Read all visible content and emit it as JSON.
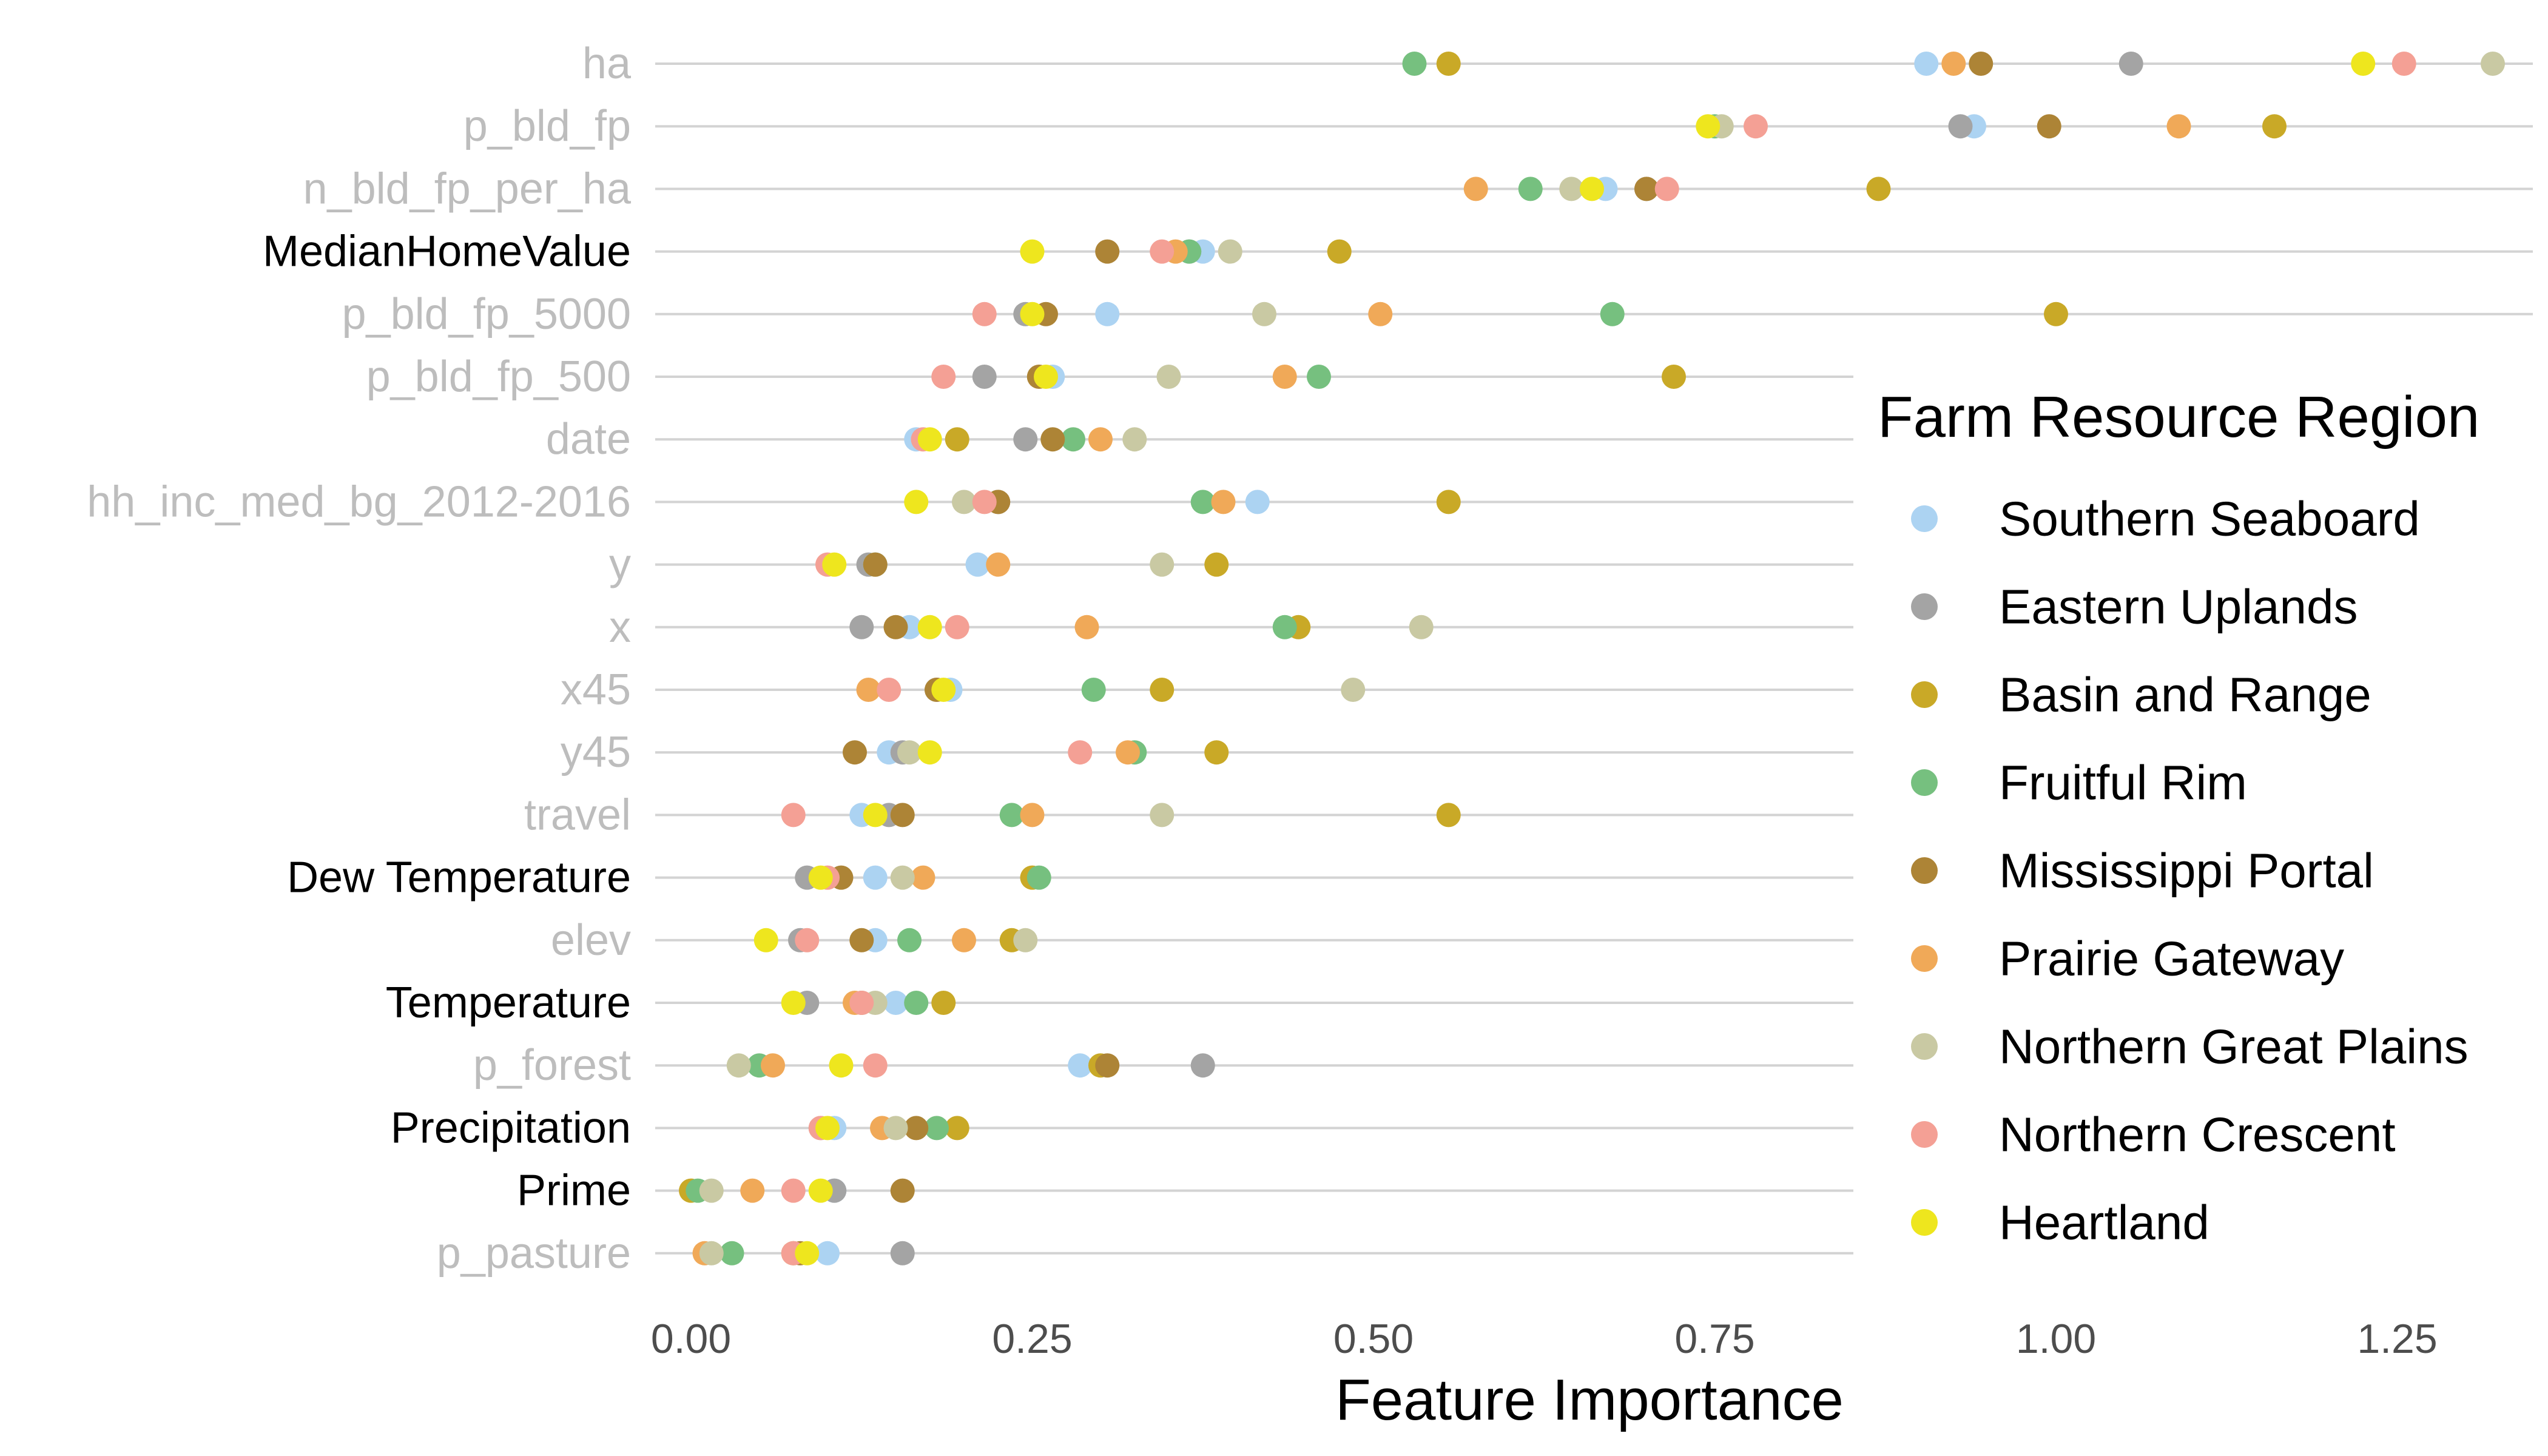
{
  "chart_data": {
    "type": "scatter",
    "xlabel": "Feature Importance",
    "xlim": [
      -0.04,
      1.35
    ],
    "xticks": [
      0,
      0.25,
      0.5,
      0.75,
      1.0,
      1.25
    ],
    "xtick_labels": [
      "0.00",
      "0.25",
      "0.50",
      "0.75",
      "1.00",
      "1.25"
    ],
    "categories": [
      "ha",
      "p_bld_fp",
      "n_bld_fp_per_ha",
      "MedianHomeValue",
      "p_bld_fp_5000",
      "p_bld_fp_500",
      "date",
      "hh_inc_med_bg_2012-2016",
      "y",
      "x",
      "x45",
      "y45",
      "travel",
      "Dew Temperature",
      "elev",
      "Temperature",
      "p_forest",
      "Precipitation",
      "Prime",
      "p_pasture"
    ],
    "category_colors": {
      "ha": "#bdbdbd",
      "p_bld_fp": "#bdbdbd",
      "n_bld_fp_per_ha": "#bdbdbd",
      "MedianHomeValue": "#000000",
      "p_bld_fp_5000": "#bdbdbd",
      "p_bld_fp_500": "#bdbdbd",
      "date": "#bdbdbd",
      "hh_inc_med_bg_2012-2016": "#bdbdbd",
      "y": "#bdbdbd",
      "x": "#bdbdbd",
      "x45": "#bdbdbd",
      "y45": "#bdbdbd",
      "travel": "#bdbdbd",
      "Dew Temperature": "#000000",
      "elev": "#bdbdbd",
      "Temperature": "#000000",
      "p_forest": "#bdbdbd",
      "Precipitation": "#000000",
      "Prime": "#000000",
      "p_pasture": "#bdbdbd"
    },
    "legend_title": "Farm Resource Region",
    "legend_position": "right",
    "grid": "horizontal",
    "series": [
      {
        "name": "Southern Seaboard",
        "color": "#acd3f2",
        "values": [
          0.905,
          0.94,
          0.67,
          0.375,
          0.305,
          0.265,
          0.165,
          0.415,
          0.21,
          0.16,
          0.19,
          0.145,
          0.125,
          0.135,
          0.135,
          0.15,
          0.285,
          0.105,
          0.105,
          0.1
        ]
      },
      {
        "name": "Eastern Uplands",
        "color": "#a4a4a4",
        "values": [
          1.055,
          0.93,
          0.7,
          0.365,
          0.245,
          0.215,
          0.245,
          0.225,
          0.13,
          0.125,
          0.18,
          0.155,
          0.145,
          0.085,
          0.08,
          0.085,
          0.375,
          0.095,
          0.105,
          0.155
        ]
      },
      {
        "name": "Basin and Range",
        "color": "#c9a927",
        "values": [
          0.555,
          1.16,
          0.87,
          0.475,
          1.0,
          0.72,
          0.195,
          0.555,
          0.385,
          0.445,
          0.345,
          0.385,
          0.555,
          0.25,
          0.235,
          0.185,
          0.3,
          0.195,
          0.0,
          0.075
        ]
      },
      {
        "name": "Fruitful Rim",
        "color": "#76c07f",
        "values": [
          0.53,
          0.75,
          0.615,
          0.365,
          0.675,
          0.46,
          0.28,
          0.375,
          0.135,
          0.435,
          0.295,
          0.325,
          0.235,
          0.255,
          0.16,
          0.165,
          0.05,
          0.18,
          0.005,
          0.03
        ]
      },
      {
        "name": "Mississippi Portal",
        "color": "#ad8436",
        "values": [
          0.945,
          0.995,
          0.7,
          0.305,
          0.26,
          0.255,
          0.265,
          0.225,
          0.135,
          0.15,
          0.18,
          0.12,
          0.155,
          0.11,
          0.125,
          0.125,
          0.305,
          0.165,
          0.155,
          0.08
        ]
      },
      {
        "name": "Prairie Gateway",
        "color": "#f0a958",
        "values": [
          0.925,
          1.09,
          0.575,
          0.355,
          0.505,
          0.435,
          0.3,
          0.39,
          0.225,
          0.29,
          0.13,
          0.32,
          0.25,
          0.17,
          0.2,
          0.12,
          0.06,
          0.14,
          0.045,
          0.01
        ]
      },
      {
        "name": "Northern Great Plains",
        "color": "#c9c9a3",
        "values": [
          1.32,
          0.755,
          0.645,
          0.395,
          0.42,
          0.35,
          0.325,
          0.2,
          0.345,
          0.535,
          0.485,
          0.16,
          0.345,
          0.155,
          0.245,
          0.135,
          0.035,
          0.15,
          0.015,
          0.015
        ]
      },
      {
        "name": "Northern Crescent",
        "color": "#f4a095",
        "values": [
          1.255,
          0.78,
          0.715,
          0.345,
          0.215,
          0.185,
          0.17,
          0.215,
          0.1,
          0.195,
          0.145,
          0.285,
          0.075,
          0.1,
          0.085,
          0.125,
          0.135,
          0.095,
          0.075,
          0.075
        ]
      },
      {
        "name": "Heartland",
        "color": "#eee61e",
        "values": [
          1.225,
          0.745,
          0.66,
          0.25,
          0.25,
          0.26,
          0.175,
          0.165,
          0.105,
          0.175,
          0.185,
          0.175,
          0.135,
          0.095,
          0.055,
          0.075,
          0.11,
          0.1,
          0.095,
          0.085
        ]
      }
    ]
  }
}
